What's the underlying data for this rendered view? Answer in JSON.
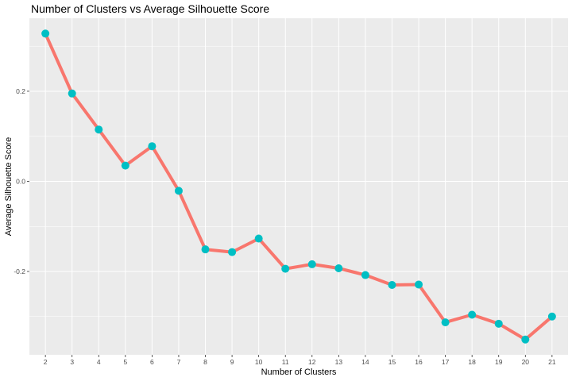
{
  "chart_data": {
    "type": "line",
    "title": "Number of Clusters vs Average Silhouette Score",
    "xlabel": "Number of Clusters",
    "ylabel": "Average Silhouette Score",
    "x": [
      2,
      3,
      4,
      5,
      6,
      7,
      8,
      9,
      10,
      11,
      12,
      13,
      14,
      15,
      16,
      17,
      18,
      19,
      20,
      21
    ],
    "y": [
      0.328,
      0.195,
      0.115,
      0.035,
      0.078,
      -0.021,
      -0.151,
      -0.157,
      -0.127,
      -0.194,
      -0.184,
      -0.193,
      -0.208,
      -0.23,
      -0.229,
      -0.313,
      -0.296,
      -0.316,
      -0.351,
      -0.3
    ],
    "y_ticks": [
      0.2,
      0.0,
      -0.2
    ],
    "y_tick_labels": [
      "0.2",
      "0.0",
      "-0.2"
    ],
    "ylim": [
      -0.385,
      0.362
    ],
    "xlim": [
      1.4,
      21.6
    ],
    "grid": true,
    "colors": {
      "line": "#F8766D",
      "points": "#00BFC4",
      "panel": "#EBEBEB",
      "grid": "#FFFFFF"
    }
  }
}
